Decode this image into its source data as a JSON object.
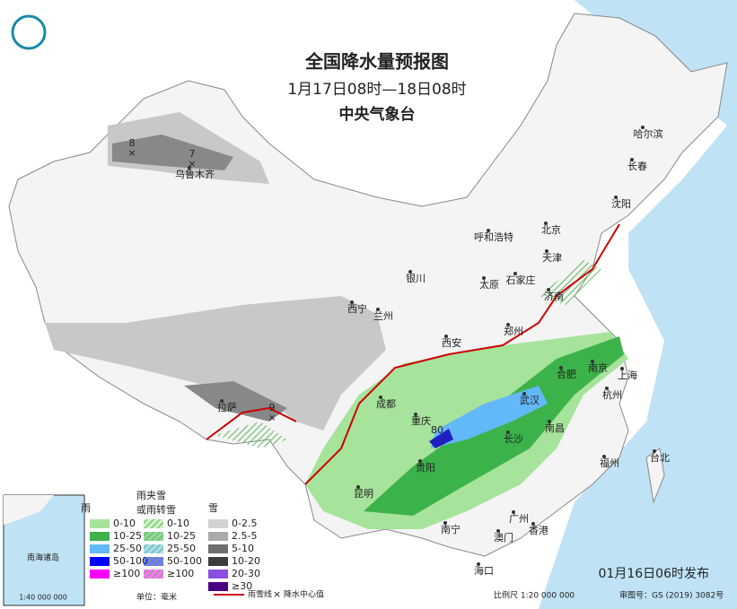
{
  "header": {
    "title": "全国降水量预报图",
    "subtitle": "1月17日08时—18日08时",
    "agency": "中央气象台"
  },
  "cities": [
    "哈尔滨",
    "长春",
    "沈阳",
    "乌鲁木齐",
    "呼和浩特",
    "北京",
    "天津",
    "石家庄",
    "太原",
    "银川",
    "济南",
    "西宁",
    "兰州",
    "郑州",
    "西安",
    "合肥",
    "南京",
    "上海",
    "拉萨",
    "成都",
    "武汉",
    "杭州",
    "重庆",
    "长沙",
    "南昌",
    "贵阳",
    "福州",
    "台北",
    "昆明",
    "广州",
    "南宁",
    "澳门",
    "香港",
    "海口"
  ],
  "centers": [
    8,
    7,
    9,
    80
  ],
  "legend": {
    "rain": {
      "title": "雨",
      "items": [
        "0-10",
        "10-25",
        "25-50",
        "50-100",
        "≥100"
      ]
    },
    "mix": {
      "title": [
        "雨夹雪",
        "或雨转雪"
      ],
      "items": [
        "0-10",
        "10-25",
        "25-50",
        "50-100",
        "≥100"
      ]
    },
    "snow": {
      "title": "雪",
      "items": [
        "0-2.5",
        "2.5-5",
        "5-10",
        "10-20",
        "20-30",
        "≥30"
      ]
    },
    "unit": "单位：毫米",
    "snowline": "雨雪线",
    "center": "降水中心值"
  },
  "inset": {
    "label": "南海诸岛",
    "scale": "1:40 000 000"
  },
  "footer": {
    "issued": "01月16日06时发布",
    "scale": "比例尺 1:20 000 000",
    "review": "审图号：GS (2019) 3082号"
  }
}
